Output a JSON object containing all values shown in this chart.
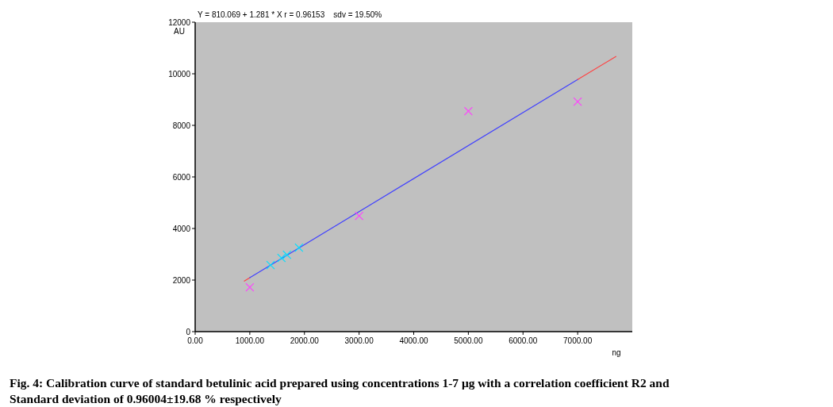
{
  "chart_data": {
    "type": "scatter",
    "title": "Y = 810.069 + 1.281 * X r = 0.96153    sdv = 19.50%",
    "xlabel": "ng",
    "ylabel": "AU",
    "annotations": [
      "Fig. 4: Calibration curve of standard betulinic acid prepared using concentrations 1-7 μg with a correlation coefficient R2 and Standard deviation of 0.96004±19.68 % respectively"
    ],
    "xlim": [
      0,
      8000
    ],
    "ylim": [
      0,
      12000
    ],
    "xticks": [
      {
        "value": 0,
        "label": "0.00"
      },
      {
        "value": 1000,
        "label": "1000.00"
      },
      {
        "value": 2000,
        "label": "2000.00"
      },
      {
        "value": 3000,
        "label": "3000.00"
      },
      {
        "value": 4000,
        "label": "4000.00"
      },
      {
        "value": 5000,
        "label": "5000.00"
      },
      {
        "value": 6000,
        "label": "6000.00"
      },
      {
        "value": 7000,
        "label": "7000.00"
      }
    ],
    "yticks": [
      0,
      2000,
      4000,
      6000,
      8000,
      10000,
      12000
    ],
    "grid": false,
    "series": [
      {
        "type": "line",
        "color": "#ff4040",
        "x": [
          900,
          1000
        ],
        "values": [
          1960,
          2090
        ]
      },
      {
        "type": "line",
        "color": "#4040ff",
        "x": [
          1000,
          7000
        ],
        "values": [
          2090,
          9780
        ]
      },
      {
        "type": "line",
        "color": "#ff4040",
        "x": [
          7000,
          7700
        ],
        "values": [
          9780,
          10670
        ]
      },
      {
        "color": "#ff40ff",
        "x": [
          1000,
          3000,
          5000,
          7000
        ],
        "values": [
          1720,
          4490,
          8550,
          8920
        ],
        "marker": "cross"
      },
      {
        "color": "#00e0ff",
        "x": [
          1380,
          1580,
          1680,
          1900
        ],
        "values": [
          2580,
          2860,
          2980,
          3260
        ],
        "marker": "cross"
      }
    ]
  }
}
